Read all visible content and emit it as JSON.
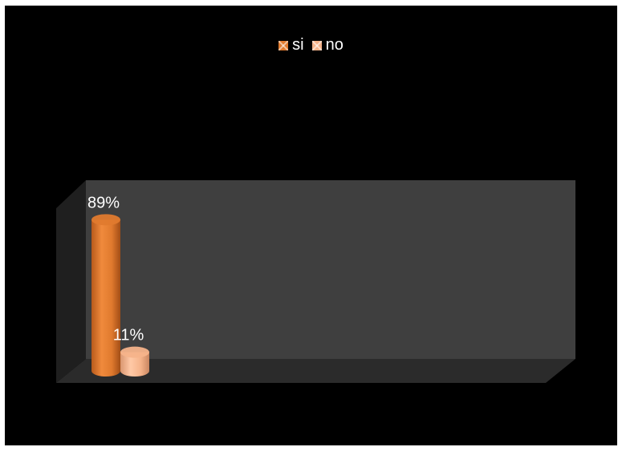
{
  "chart_data": {
    "type": "bar",
    "style": "3d-cylinder",
    "categories": [
      ""
    ],
    "series": [
      {
        "name": "si",
        "values": [
          89
        ],
        "label": "89%",
        "color": "#E07A2E"
      },
      {
        "name": "no",
        "values": [
          11
        ],
        "label": "11%",
        "color": "#F5B38A"
      }
    ],
    "ylim": [
      0,
      100
    ],
    "grid": false,
    "legend": "top-center",
    "background": "#000000",
    "wall_color": "#3F3F3F",
    "floor_color": "#2B2B2B"
  }
}
